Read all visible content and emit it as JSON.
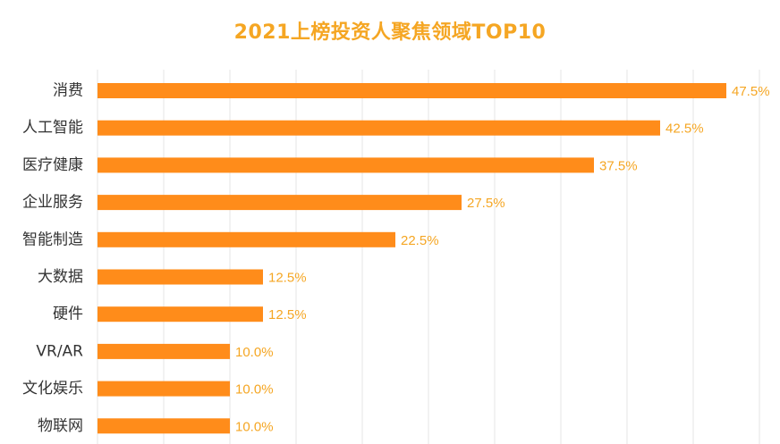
{
  "chart_data": {
    "type": "bar",
    "orientation": "horizontal",
    "title": "2021上榜投资人聚焦领域TOP10",
    "categories": [
      "消费",
      "人工智能",
      "医疗健康",
      "企业服务",
      "智能制造",
      "大数据",
      "硬件",
      "VR/AR",
      "文化娱乐",
      "物联网"
    ],
    "values": [
      47.5,
      42.5,
      37.5,
      27.5,
      22.5,
      12.5,
      12.5,
      10.0,
      10.0,
      10.0
    ],
    "value_labels": [
      "47.5%",
      "42.5%",
      "37.5%",
      "27.5%",
      "22.5%",
      "12.5%",
      "12.5%",
      "10.0%",
      "10.0%",
      "10.0%"
    ],
    "xlim": [
      0,
      50
    ],
    "grid": true,
    "legend": "none",
    "bar_color": "#FF8C1A",
    "label_color": "#F5A623",
    "title_color": "#F5A623"
  }
}
